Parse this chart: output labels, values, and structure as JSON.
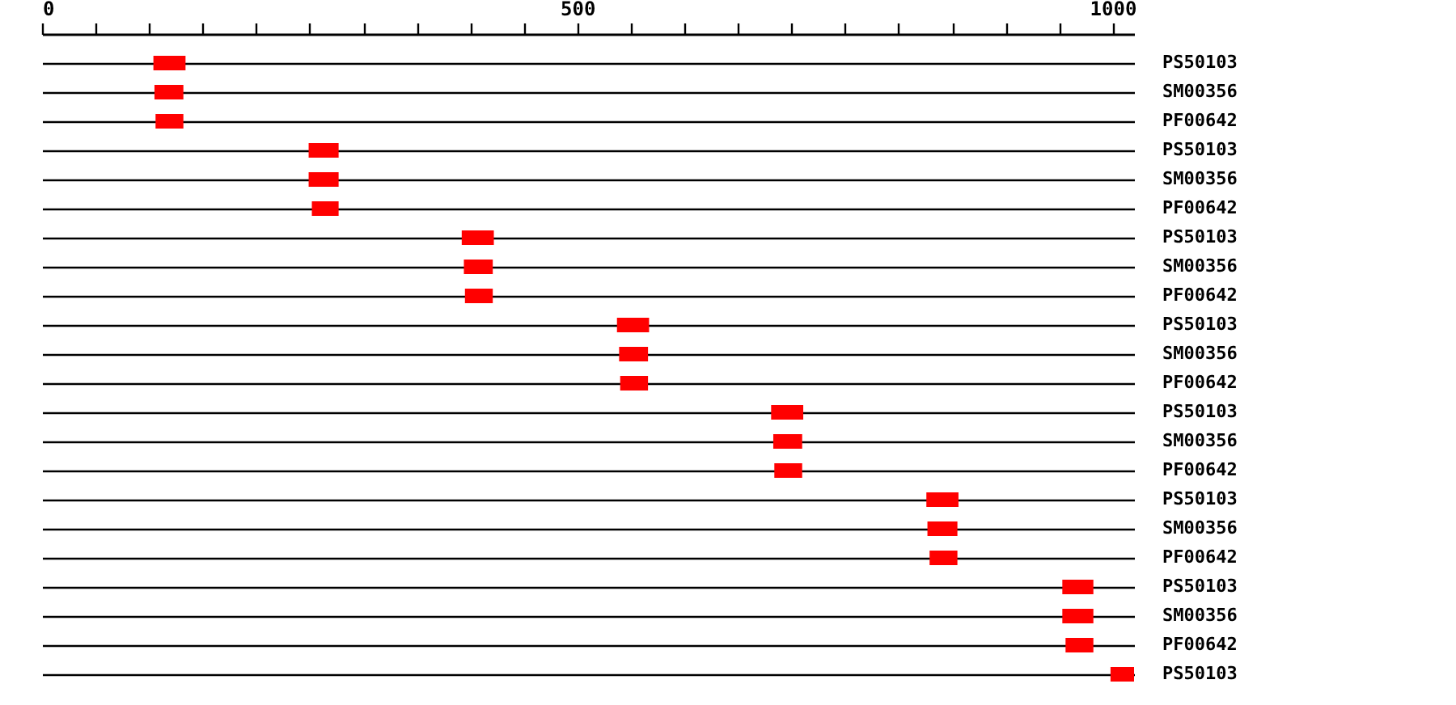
{
  "chart_data": {
    "type": "bar",
    "orientation": "horizontal",
    "categories": [
      "PS50103",
      "SM00356",
      "PF00642",
      "PS50103",
      "SM00356",
      "PF00642",
      "PS50103",
      "SM00356",
      "PF00642",
      "PS50103",
      "SM00356",
      "PF00642",
      "PS50103",
      "SM00356",
      "PF00642",
      "PS50103",
      "SM00356",
      "PF00642",
      "PS50103",
      "SM00356",
      "PF00642",
      "PS50103"
    ],
    "base": [
      104,
      105,
      106,
      249,
      249,
      252,
      392,
      394,
      395,
      537,
      539,
      540,
      681,
      683,
      684,
      826,
      827,
      829,
      953,
      953,
      956,
      998
    ],
    "values": [
      30,
      27,
      26,
      28,
      28,
      25,
      30,
      27,
      26,
      30,
      27,
      26,
      30,
      27,
      26,
      30,
      28,
      26,
      29,
      29,
      26,
      22
    ],
    "color": "#ff0000",
    "xlim": [
      0,
      1020
    ],
    "xticks": [
      0,
      {
        "value": 50,
        "label": null
      },
      {
        "value": 100,
        "label": null
      },
      {
        "value": 150,
        "label": null
      },
      {
        "value": 200,
        "label": null
      },
      {
        "value": 250,
        "label": null
      },
      {
        "value": 300,
        "label": null
      },
      {
        "value": 350,
        "label": null
      },
      {
        "value": 400,
        "label": null
      },
      {
        "value": 450,
        "label": null
      },
      500,
      {
        "value": 550,
        "label": null
      },
      {
        "value": 600,
        "label": null
      },
      {
        "value": 650,
        "label": null
      },
      {
        "value": 700,
        "label": null
      },
      {
        "value": 750,
        "label": null
      },
      {
        "value": 800,
        "label": null
      },
      {
        "value": 850,
        "label": null
      },
      {
        "value": 900,
        "label": null
      },
      {
        "value": 950,
        "label": null
      },
      1000
    ],
    "grid": "y"
  }
}
